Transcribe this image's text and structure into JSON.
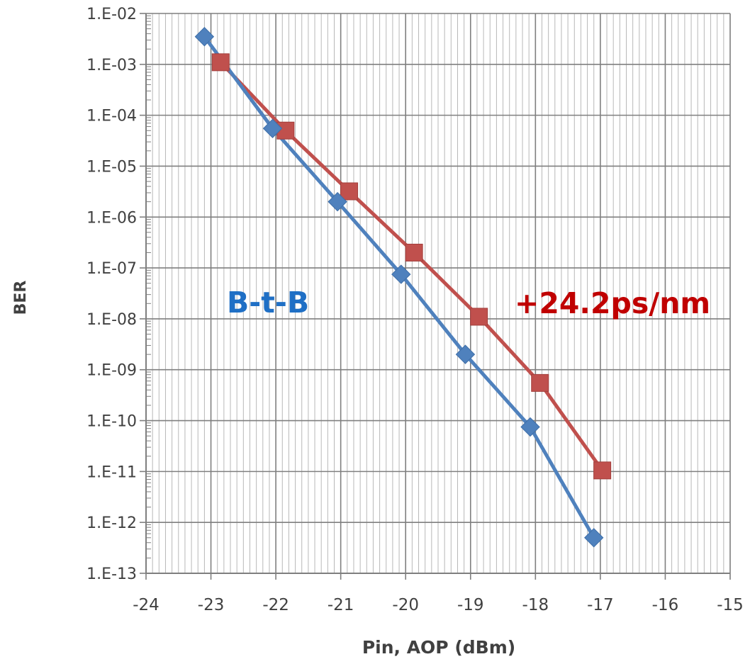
{
  "chart_data": {
    "type": "line",
    "title": "",
    "xlabel": "Pin, AOP (dBm)",
    "ylabel": "BER",
    "xlim": [
      -24,
      -15
    ],
    "ylim": [
      1e-13,
      0.01
    ],
    "yscale": "log",
    "grid": true,
    "minor_grid": true,
    "x_ticks": [
      -24,
      -23,
      -22,
      -21,
      -20,
      -19,
      -18,
      -17,
      -16,
      -15
    ],
    "x_tick_labels": [
      "-24",
      "-23",
      "-22",
      "-21",
      "-20",
      "-19",
      "-18",
      "-17",
      "-16",
      "-15"
    ],
    "y_ticks": [
      0.01,
      0.001,
      0.0001,
      1e-05,
      1e-06,
      1e-07,
      1e-08,
      1e-09,
      1e-10,
      1e-11,
      1e-12,
      1e-13
    ],
    "y_tick_labels": [
      "1.E-02",
      "1.E-03",
      "1.E-04",
      "1.E-05",
      "1.E-06",
      "1.E-07",
      "1.E-08",
      "1.E-09",
      "1.E-10",
      "1.E-11",
      "1.E-12",
      "1.E-13"
    ],
    "series": [
      {
        "name": "B-t-B",
        "color": "#4f81bd",
        "label_color": "#1f6fc5",
        "marker": "diamond",
        "x": [
          -23.1,
          -22.05,
          -21.05,
          -20.07,
          -19.08,
          -18.08,
          -17.1
        ],
        "y": [
          0.0035,
          5.5e-05,
          2e-06,
          7.5e-08,
          2e-09,
          7.5e-11,
          5e-13
        ]
      },
      {
        "name": "+24.2ps/nm",
        "color": "#c0504d",
        "label_color": "#c00000",
        "marker": "square",
        "x": [
          -22.85,
          -21.85,
          -20.87,
          -19.87,
          -18.87,
          -17.93,
          -16.97
        ],
        "y": [
          0.0011,
          5e-05,
          3.2e-06,
          2e-07,
          1.1e-08,
          5.5e-10,
          1.05e-11
        ]
      }
    ]
  }
}
